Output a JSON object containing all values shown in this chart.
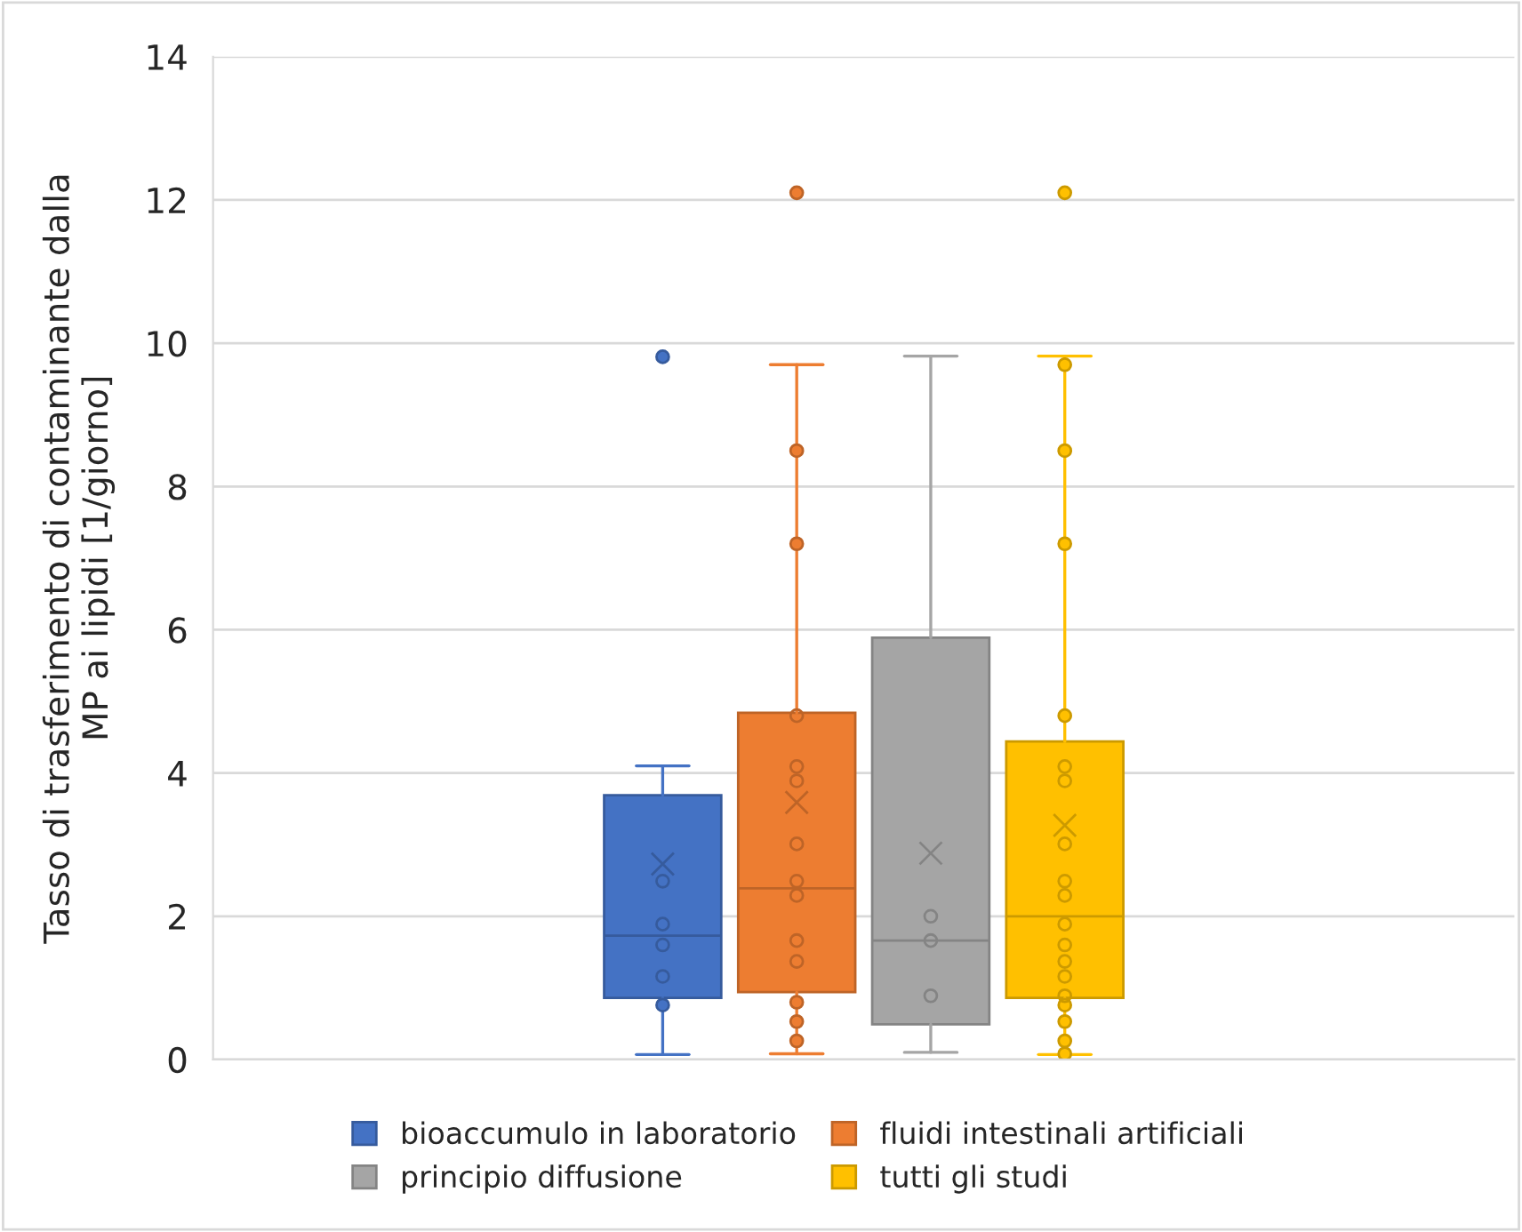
{
  "chart_data": {
    "type": "box",
    "ylabel": "Tasso di trasferimento di contaminante dalla\nMP ai lipidi [1/giorno]",
    "categories": [
      null
    ],
    "ylim": [
      0,
      14
    ],
    "yticks": [
      0,
      2,
      4,
      6,
      8,
      10,
      12,
      14
    ],
    "grid": "y",
    "legend": "bottom",
    "marker": "circle",
    "series": [
      {
        "name": "bioaccumulo in laboratorio",
        "color": "#4472c4",
        "boxes": [
          {
            "low": 0.07,
            "q1": 0.86,
            "median": 1.73,
            "q3": 3.69,
            "high": 4.1,
            "mean": 2.73,
            "outliers": [
              9.81,
              0.76
            ]
          }
        ]
      },
      {
        "name": "fluidi intestinali artificiali",
        "color": "#ed7d31",
        "boxes": [
          {
            "low": 0.08,
            "q1": 0.94,
            "median": 2.39,
            "q3": 4.84,
            "high": 9.7,
            "mean": 3.59,
            "outliers": [
              12.1,
              8.5,
              7.2,
              0.8,
              0.53,
              0.26
            ]
          }
        ]
      },
      {
        "name": "principio diffusione",
        "color": "#a5a5a5",
        "boxes": [
          {
            "low": 0.1,
            "q1": 0.49,
            "median": 1.66,
            "q3": 5.89,
            "high": 9.82,
            "mean": 2.88
          }
        ]
      },
      {
        "name": "tutti gli studi",
        "color": "#ffc000",
        "boxes": [
          {
            "low": 0.07,
            "q1": 0.86,
            "median": 2.0,
            "q3": 4.44,
            "high": 9.82,
            "mean": 3.27,
            "outliers": [
              12.1,
              9.7,
              8.5,
              7.2,
              4.8,
              0.76,
              0.53,
              0.26,
              0.08
            ]
          }
        ]
      },
      {
        "type": "scatter",
        "color": "#365b9d",
        "x": [
          null,
          null,
          null,
          null
        ],
        "values": [
          2.49,
          1.89,
          1.6,
          1.16
        ]
      },
      {
        "type": "scatter",
        "color": "#be6427",
        "x": [
          null,
          null,
          null,
          null,
          null,
          null,
          null,
          null
        ],
        "values": [
          4.8,
          4.09,
          3.89,
          3.01,
          2.49,
          2.29,
          1.66,
          1.37
        ]
      },
      {
        "type": "scatter",
        "color": "#848484",
        "x": [
          null,
          null,
          null
        ],
        "values": [
          2.0,
          1.66,
          0.89
        ]
      },
      {
        "type": "scatter",
        "color": "#cc9a00",
        "x": [
          null,
          null,
          null,
          null,
          null,
          null,
          null,
          null,
          null,
          null
        ],
        "values": [
          4.09,
          3.89,
          3.01,
          2.49,
          2.29,
          1.89,
          1.6,
          1.37,
          1.16,
          0.89
        ]
      }
    ]
  }
}
